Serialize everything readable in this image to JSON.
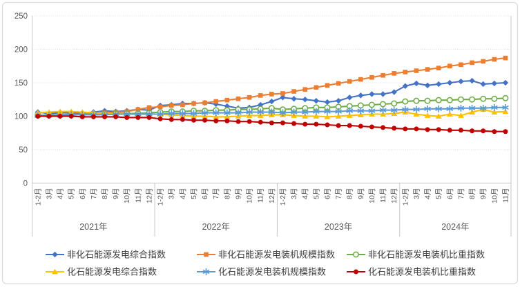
{
  "chart_data": {
    "type": "line",
    "title": "",
    "background_color": "#FFFFFF",
    "frame_border_color": "#D9D9D9",
    "axis_text_color": "#595959",
    "gridline_color": "#DADADA",
    "axis_line_color": "#C6C6C6",
    "grid": {
      "horizontal": true,
      "style": "dotted"
    },
    "ylim": [
      0,
      250
    ],
    "ystep": 50,
    "y_ticks": [
      "0",
      "50",
      "100",
      "150",
      "200",
      "250"
    ],
    "x_axis": {
      "years": [
        {
          "label": "2021年",
          "months": [
            "1-2月",
            "3月",
            "4月",
            "5月",
            "6月",
            "7月",
            "8月",
            "9月",
            "10月",
            "11月",
            "12月"
          ]
        },
        {
          "label": "2022年",
          "months": [
            "1-2月",
            "3月",
            "4月",
            "5月",
            "6月",
            "7月",
            "8月",
            "9月",
            "10月",
            "11月",
            "12月"
          ]
        },
        {
          "label": "2023年",
          "months": [
            "1-2月",
            "3月",
            "4月",
            "5月",
            "6月",
            "7月",
            "8月",
            "9月",
            "10月",
            "11月",
            "12月"
          ]
        },
        {
          "label": "2024年",
          "months": [
            "1-2月",
            "3月",
            "4月",
            "5月",
            "6月",
            "7月",
            "8月",
            "9月",
            "10月",
            "11月"
          ]
        }
      ]
    },
    "legend": {
      "position": "bottom",
      "rows": [
        [
          0,
          1,
          2
        ],
        [
          3,
          4,
          5
        ]
      ]
    },
    "series": [
      {
        "id": "nonfossil-power-comprehensive-index",
        "name": "非化石能源发电综合指数",
        "color": "#4472C4",
        "marker": "diamond",
        "values": [
          106,
          104,
          105,
          105,
          105,
          106,
          108,
          107,
          108,
          110,
          109,
          116,
          117,
          119,
          119,
          120,
          118,
          115,
          112,
          113,
          117,
          122,
          128,
          126,
          125,
          123,
          121,
          123,
          128,
          131,
          133,
          133,
          136,
          145,
          149,
          146,
          148,
          150,
          152,
          153,
          148,
          149,
          150
        ]
      },
      {
        "id": "nonfossil-installed-capacity-scale-index",
        "name": "非化石能源发电装机规模指数",
        "color": "#ED7D31",
        "marker": "square",
        "values": [
          101,
          102,
          102,
          103,
          103,
          104,
          105,
          106,
          107,
          110,
          113,
          114,
          116,
          117,
          119,
          120,
          122,
          124,
          126,
          128,
          131,
          133,
          134,
          137,
          140,
          143,
          146,
          149,
          152,
          155,
          158,
          161,
          164,
          166,
          168,
          170,
          172,
          175,
          177,
          180,
          182,
          185,
          187
        ]
      },
      {
        "id": "nonfossil-installed-capacity-share-index",
        "name": "非化石能源发电装机比重指数",
        "color": "#70AD47",
        "marker": "circle-open",
        "values": [
          101,
          102,
          102,
          102,
          103,
          103,
          103,
          104,
          104,
          104,
          105,
          106,
          107,
          107,
          108,
          108,
          109,
          109,
          110,
          110,
          111,
          112,
          110,
          111,
          112,
          113,
          113,
          114,
          115,
          116,
          117,
          118,
          119,
          122,
          123,
          123,
          124,
          124,
          125,
          125,
          126,
          126,
          127
        ]
      },
      {
        "id": "fossil-power-comprehensive-index",
        "name": "化石能源发电综合指数",
        "color": "#FFC000",
        "marker": "triangle",
        "values": [
          105,
          106,
          107,
          107,
          106,
          105,
          104,
          104,
          103,
          103,
          103,
          103,
          102,
          101,
          100,
          100,
          99,
          99,
          100,
          101,
          101,
          102,
          102,
          101,
          100,
          100,
          99,
          100,
          101,
          102,
          103,
          103,
          104,
          106,
          103,
          101,
          100,
          103,
          101,
          106,
          110,
          106,
          107
        ]
      },
      {
        "id": "fossil-installed-capacity-scale-index",
        "name": "化石能源发电装机规模指数",
        "color": "#5B9BD5",
        "marker": "asterisk",
        "values": [
          101,
          101,
          101,
          102,
          102,
          102,
          102,
          103,
          103,
          103,
          103,
          103,
          104,
          104,
          104,
          105,
          105,
          105,
          105,
          106,
          106,
          106,
          105,
          106,
          106,
          107,
          107,
          107,
          108,
          108,
          108,
          109,
          109,
          110,
          110,
          111,
          111,
          111,
          112,
          112,
          112,
          113,
          113
        ]
      },
      {
        "id": "fossil-installed-capacity-share-index",
        "name": "化石能源发电装机比重指数",
        "color": "#C00000",
        "marker": "circle-filled",
        "values": [
          100,
          100,
          100,
          100,
          99,
          99,
          99,
          99,
          98,
          98,
          98,
          96,
          95,
          95,
          94,
          94,
          93,
          93,
          92,
          92,
          91,
          90,
          90,
          89,
          88,
          88,
          87,
          86,
          86,
          85,
          84,
          83,
          82,
          81,
          81,
          80,
          80,
          79,
          79,
          78,
          78,
          77,
          77
        ]
      }
    ]
  }
}
